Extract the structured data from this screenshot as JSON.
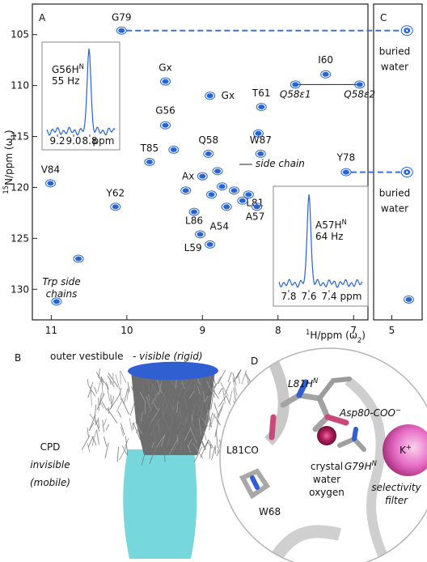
{
  "chart_data": [
    {
      "type": "scatter",
      "panel_label": "A",
      "x_label": {
        "sup": "1",
        "text": "H/ppm (ω",
        "sub": "2",
        "end": ")"
      },
      "y_label": {
        "sup": "15",
        "text": "N/ppm (ω",
        "sub": "1",
        "end": ")"
      },
      "xlim": [
        11.25,
        6.81
      ],
      "ylim": [
        102,
        133
      ],
      "xticks": [
        11,
        10,
        9,
        8,
        7
      ],
      "yticks": [
        105,
        110,
        115,
        120,
        125,
        130
      ],
      "color": "#2563d6",
      "points": {
        "labels": [
          "G79",
          "I60",
          "Gx",
          "Gx",
          "T61",
          "G56",
          "Q58",
          "W87",
          "T85",
          "Y78",
          "V84",
          "Ax",
          "L81",
          "A57",
          "L86",
          "Y62",
          "A54",
          "L59",
          null,
          null,
          null,
          null,
          null,
          null,
          null,
          null,
          null,
          null,
          null
        ],
        "x": [
          10.07,
          7.37,
          9.49,
          8.9,
          8.22,
          9.49,
          8.92,
          8.23,
          9.7,
          7.1,
          11.01,
          9.0,
          8.39,
          8.28,
          9.11,
          10.15,
          9.03,
          8.9,
          10.93,
          10.64,
          8.74,
          8.58,
          8.88,
          8.47,
          8.68,
          9.38,
          9.22,
          8.26,
          8.8
        ],
        "y": [
          104.6,
          108.9,
          109.6,
          111.0,
          112.1,
          113.9,
          116.7,
          116.7,
          117.5,
          118.5,
          119.6,
          118.9,
          120.7,
          121.9,
          122.4,
          121.9,
          124.6,
          125.6,
          131.2,
          127.0,
          119.9,
          120.3,
          120.7,
          121.3,
          121.9,
          116.3,
          120.3,
          114.7,
          118.4
        ]
      },
      "side_chain_pair": {
        "labels": [
          "Q58ε1",
          "Q58ε2"
        ],
        "x": [
          7.77,
          6.92
        ],
        "y": [
          109.9,
          109.9
        ]
      },
      "annotations": {
        "side_chain": "side chain",
        "trp": [
          "Trp side",
          "chains"
        ]
      },
      "insets": [
        {
          "label": "G56H",
          "sup": "N",
          "linewidth": "55 Hz",
          "xlim": [
            9.33,
            8.49
          ],
          "xticks": [
            9.2,
            {
              "value": 9,
              "label": "9.0"
            },
            8.8
          ],
          "unit": "ppm"
        },
        {
          "label": "A57H",
          "sup": "N",
          "linewidth": "64 Hz",
          "xlim": [
            7.896,
            7.072
          ],
          "xticks": [
            7.8,
            7.6,
            7.4
          ],
          "unit": "ppm"
        }
      ]
    },
    {
      "type": "scatter",
      "panel_label": "C",
      "xlim": [
        5.3,
        4.5
      ],
      "ylim": [
        102,
        133
      ],
      "xticks": [
        5
      ],
      "color": "#2563d6",
      "points": {
        "x": [
          4.75,
          4.75,
          4.72
        ],
        "y": [
          104.6,
          118.5,
          131.0
        ]
      },
      "annotations": [
        [
          "buried",
          "water"
        ],
        [
          "buried",
          "water"
        ]
      ]
    }
  ],
  "panel_b": {
    "label": "B",
    "top": "outer vestibule",
    "top_note": "- visible (rigid)",
    "bottom": [
      "CPD",
      "invisible",
      "(mobile)"
    ]
  },
  "panel_d": {
    "label": "D",
    "l81hn": {
      "text": "L81H",
      "sup": "N"
    },
    "asp80": {
      "text": "Asp80-COO",
      "sup": "−"
    },
    "l81co": "L81CO",
    "g79hn": {
      "text": "G79H",
      "sup": "N"
    },
    "ion": {
      "text": "K",
      "sup": "+"
    },
    "water": [
      "crystal",
      "water",
      "oxygen"
    ],
    "filter": [
      "selectivity",
      "filter"
    ],
    "w68": "W68"
  }
}
